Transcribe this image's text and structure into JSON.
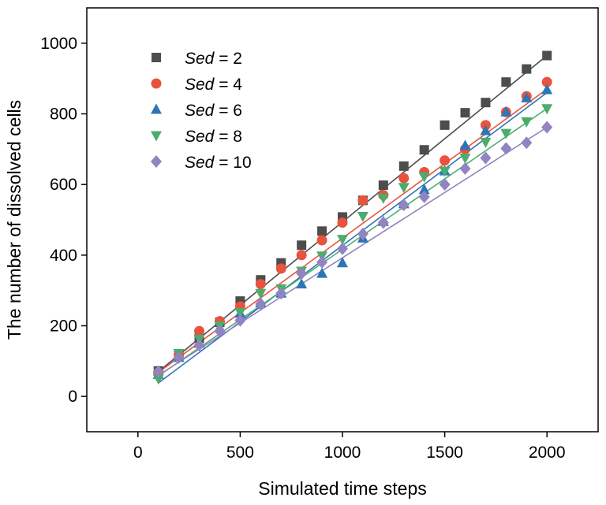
{
  "chart_data": {
    "type": "scatter",
    "xlabel": "Simulated time steps",
    "ylabel": "The number of dissolved cells",
    "xlim": [
      -250,
      2250
    ],
    "ylim": [
      -100,
      1100
    ],
    "x_ticks": [
      0,
      500,
      1000,
      1500,
      2000
    ],
    "y_ticks": [
      0,
      200,
      400,
      600,
      800,
      1000
    ],
    "x_tick_labels": [
      "0",
      "500",
      "1000",
      "1500",
      "2000"
    ],
    "y_tick_labels": [
      "0",
      "200",
      "400",
      "600",
      "800",
      "1000"
    ],
    "grid": false,
    "legend_placement": "top-left",
    "x": [
      100,
      200,
      300,
      400,
      500,
      600,
      700,
      800,
      900,
      1000,
      1100,
      1200,
      1300,
      1400,
      1500,
      1600,
      1700,
      1800,
      1900,
      2000
    ],
    "series": [
      {
        "name": "Sed = 2",
        "legend_var": "Sed",
        "legend_rest": " = 2",
        "marker": "square",
        "color": "#4d4d4d",
        "values": [
          72,
          120,
          165,
          210,
          270,
          330,
          378,
          428,
          468,
          508,
          555,
          598,
          652,
          698,
          768,
          803,
          832,
          890,
          927,
          965
        ],
        "fit": [
          70,
          965
        ]
      },
      {
        "name": "Sed = 4",
        "legend_var": "Sed",
        "legend_rest": " = 4",
        "marker": "circle",
        "color": "#e8533f",
        "values": [
          68,
          118,
          185,
          213,
          255,
          318,
          362,
          400,
          442,
          492,
          555,
          570,
          618,
          635,
          668,
          700,
          768,
          805,
          850,
          890
        ],
        "fit": [
          68,
          870
        ]
      },
      {
        "name": "Sed = 6",
        "legend_var": "Sed",
        "legend_rest": " = 6",
        "marker": "triangle-up",
        "color": "#2e75b6",
        "values": [
          62,
          110,
          150,
          195,
          235,
          265,
          292,
          318,
          348,
          378,
          448,
          495,
          545,
          585,
          638,
          710,
          752,
          805,
          845,
          868
        ],
        "fit": [
          38,
          860
        ]
      },
      {
        "name": "Sed = 8",
        "legend_var": "Sed",
        "legend_rest": " = 8",
        "marker": "triangle-down",
        "color": "#4cac6c",
        "values": [
          50,
          122,
          162,
          200,
          238,
          292,
          305,
          355,
          398,
          445,
          510,
          562,
          592,
          622,
          638,
          675,
          720,
          745,
          778,
          815
        ],
        "fit": [
          58,
          815
        ]
      },
      {
        "name": "Sed = 10",
        "legend_var": "Sed",
        "legend_rest": " = 10",
        "marker": "diamond",
        "color": "#9184c0",
        "values": [
          70,
          110,
          145,
          185,
          215,
          262,
          292,
          348,
          380,
          418,
          460,
          492,
          542,
          565,
          600,
          645,
          675,
          702,
          718,
          762
        ],
        "fit": [
          60,
          762
        ]
      }
    ]
  }
}
